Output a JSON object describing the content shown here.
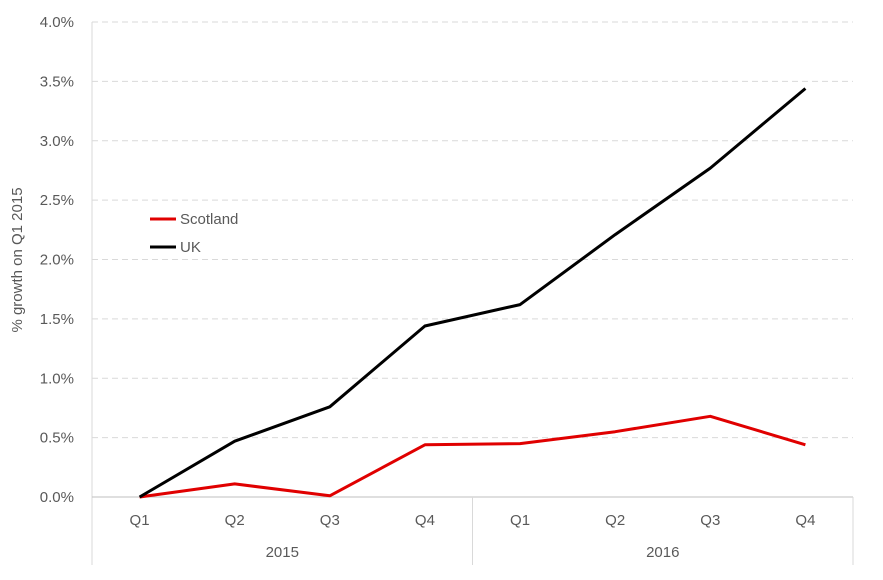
{
  "chart_data": {
    "type": "line",
    "title": "",
    "ylabel": "% growth on Q1 2015",
    "xlabel": "",
    "ylim": [
      0,
      4.0
    ],
    "y_ticks": [
      "0.0%",
      "0.5%",
      "1.0%",
      "1.5%",
      "2.0%",
      "2.5%",
      "3.0%",
      "3.5%",
      "4.0%"
    ],
    "categories": [
      "Q1",
      "Q2",
      "Q3",
      "Q4",
      "Q1",
      "Q2",
      "Q3",
      "Q4"
    ],
    "category_groups": [
      {
        "label": "2015",
        "span": 4
      },
      {
        "label": "2016",
        "span": 4
      }
    ],
    "grid": true,
    "legend_position": "left-middle",
    "series": [
      {
        "name": "Scotland",
        "color": "#e00000",
        "values": [
          0.0,
          0.11,
          0.01,
          0.44,
          0.45,
          0.55,
          0.68,
          0.44
        ]
      },
      {
        "name": "UK",
        "color": "#000000",
        "values": [
          0.0,
          0.47,
          0.76,
          1.44,
          1.62,
          2.21,
          2.77,
          3.44
        ]
      }
    ]
  }
}
